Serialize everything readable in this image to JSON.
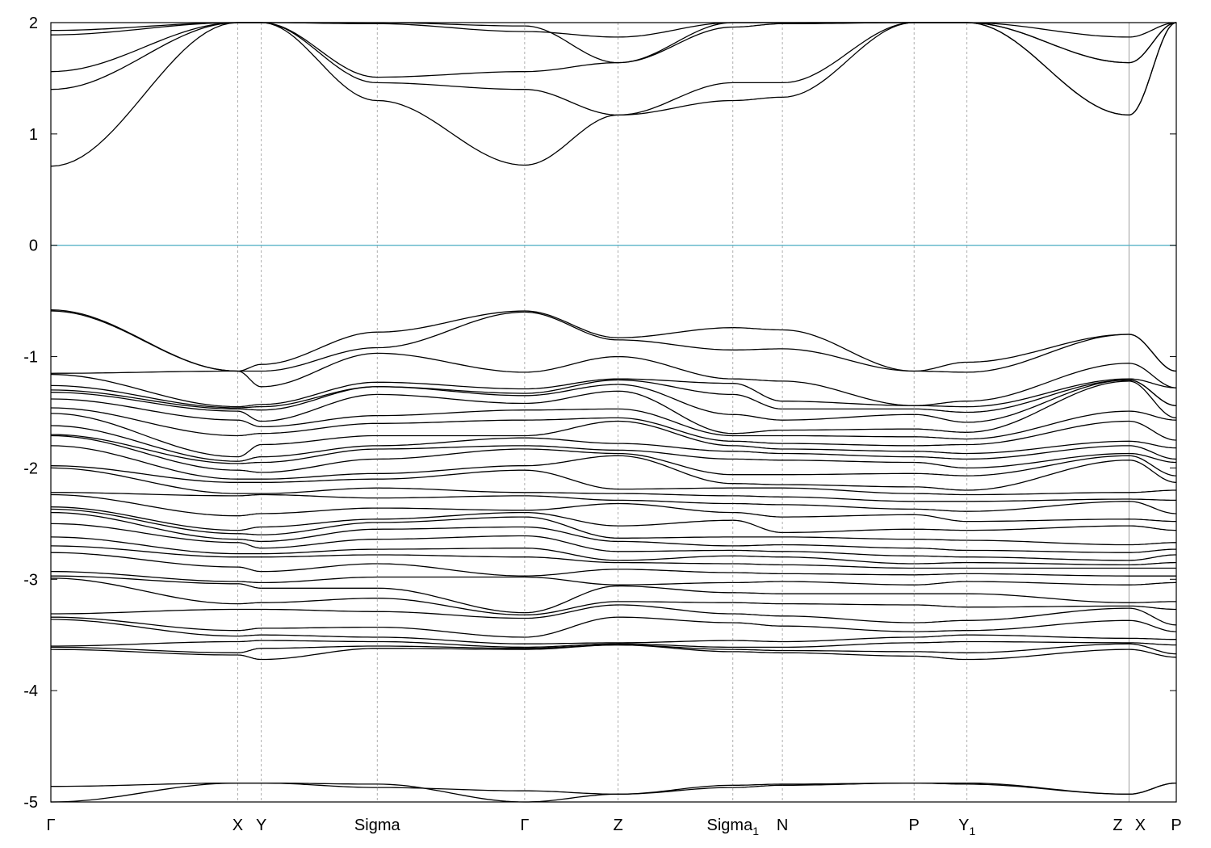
{
  "chart_data": {
    "type": "line",
    "title": "",
    "xlabel": "",
    "ylabel": "",
    "ylim": [
      -5,
      2
    ],
    "yticks": [
      "2",
      "1",
      "0",
      "-1",
      "-2",
      "-3",
      "-4",
      "-5"
    ],
    "fermi_level": {
      "value": 0,
      "color": "#5ab4c8"
    },
    "grid": "dashed vertical lines at high-symmetry points",
    "band_color": "#000000",
    "kpoints": [
      {
        "label": "Γ",
        "sub": "",
        "k": 0.0
      },
      {
        "label": "X",
        "sub": "",
        "k": 1.66
      },
      {
        "label": "Y",
        "sub": "",
        "k": 1.87
      },
      {
        "label": "Sigma",
        "sub": "",
        "k": 2.9
      },
      {
        "label": "Γ",
        "sub": "",
        "k": 4.21
      },
      {
        "label": "Z",
        "sub": "",
        "k": 5.04
      },
      {
        "label": "Sigma",
        "sub": "1",
        "k": 6.06
      },
      {
        "label": "N",
        "sub": "",
        "k": 6.5
      },
      {
        "label": "P",
        "sub": "",
        "k": 7.67
      },
      {
        "label": "Y",
        "sub": "1",
        "k": 8.14
      },
      {
        "label": "Z",
        "sub": "",
        "k": 9.58
      },
      {
        "label": "X",
        "sub": "",
        "k": 9.58
      },
      {
        "label": "P",
        "sub": "",
        "k": 10.0
      }
    ],
    "band_segments": [
      {
        "from": 0.0,
        "to": 1.66
      },
      {
        "from": 1.66,
        "to": 1.87
      },
      {
        "from": 1.87,
        "to": 2.9
      },
      {
        "from": 2.9,
        "to": 4.21
      },
      {
        "from": 4.21,
        "to": 5.04
      },
      {
        "from": 5.04,
        "to": 6.06
      },
      {
        "from": 6.06,
        "to": 6.5
      },
      {
        "from": 6.5,
        "to": 7.67
      },
      {
        "from": 7.67,
        "to": 8.14
      },
      {
        "from": 8.14,
        "to": 9.58
      },
      {
        "from": 9.58,
        "to": 10.0
      }
    ],
    "series": [
      {
        "values": [
          0.71,
          2.0,
          2.0,
          1.3,
          0.72,
          1.17,
          1.3,
          1.33,
          2.0,
          2.0,
          1.17,
          2.0
        ]
      },
      {
        "values": [
          1.4,
          2.0,
          2.0,
          1.46,
          1.4,
          1.17,
          1.46,
          1.46,
          2.0,
          2.0,
          1.17,
          2.0
        ]
      },
      {
        "values": [
          1.56,
          2.0,
          2.0,
          1.51,
          1.56,
          1.64,
          1.96,
          1.99,
          2.0,
          2.0,
          1.64,
          2.0
        ]
      },
      {
        "values": [
          1.89,
          2.0,
          2.0,
          1.99,
          1.92,
          1.87,
          2.0,
          2.0,
          2.0,
          2.0,
          1.87,
          2.0
        ]
      },
      {
        "values": [
          1.93,
          2.0,
          2.0,
          2.0,
          1.97,
          1.64,
          2.0,
          2.0,
          2.0,
          2.0,
          1.64,
          2.0
        ]
      },
      {
        "values": [
          -0.58,
          -1.13,
          -1.07,
          -0.78,
          -0.59,
          -0.83,
          -0.74,
          -0.76,
          -1.13,
          -1.05,
          -0.8,
          -1.13
        ]
      },
      {
        "values": [
          -0.59,
          -1.13,
          -1.13,
          -0.92,
          -0.6,
          -0.85,
          -0.94,
          -0.93,
          -1.13,
          -1.14,
          -0.8,
          -1.13
        ]
      },
      {
        "values": [
          -1.15,
          -1.13,
          -1.27,
          -0.97,
          -1.14,
          -1.0,
          -1.2,
          -1.22,
          -1.44,
          -1.4,
          -1.06,
          -1.28
        ]
      },
      {
        "values": [
          -1.16,
          -1.45,
          -1.43,
          -1.23,
          -1.29,
          -1.2,
          -1.24,
          -1.4,
          -1.44,
          -1.45,
          -1.2,
          -1.28
        ]
      },
      {
        "values": [
          -1.26,
          -1.46,
          -1.45,
          -1.27,
          -1.33,
          -1.21,
          -1.34,
          -1.47,
          -1.47,
          -1.5,
          -1.21,
          -1.44
        ]
      },
      {
        "values": [
          -1.3,
          -1.47,
          -1.48,
          -1.27,
          -1.35,
          -1.25,
          -1.52,
          -1.57,
          -1.52,
          -1.59,
          -1.21,
          -1.44
        ]
      },
      {
        "values": [
          -1.32,
          -1.49,
          -1.58,
          -1.34,
          -1.42,
          -1.31,
          -1.69,
          -1.66,
          -1.65,
          -1.68,
          -1.22,
          -1.55
        ]
      },
      {
        "values": [
          -1.38,
          -1.57,
          -1.63,
          -1.53,
          -1.48,
          -1.47,
          -1.71,
          -1.71,
          -1.72,
          -1.74,
          -1.49,
          -1.57
        ]
      },
      {
        "values": [
          -1.46,
          -1.71,
          -1.69,
          -1.6,
          -1.57,
          -1.55,
          -1.76,
          -1.78,
          -1.8,
          -1.79,
          -1.58,
          -1.75
        ]
      },
      {
        "values": [
          -1.51,
          -1.9,
          -1.79,
          -1.71,
          -1.71,
          -1.58,
          -1.8,
          -1.83,
          -1.85,
          -1.87,
          -1.76,
          -1.82
        ]
      },
      {
        "values": [
          -1.62,
          -1.94,
          -1.9,
          -1.8,
          -1.73,
          -1.78,
          -1.85,
          -1.87,
          -1.9,
          -1.92,
          -1.8,
          -1.92
        ]
      },
      {
        "values": [
          -1.7,
          -1.96,
          -1.95,
          -1.83,
          -1.8,
          -1.84,
          -1.92,
          -1.93,
          -1.95,
          -2.0,
          -1.87,
          -1.95
        ]
      },
      {
        "values": [
          -1.71,
          -2.02,
          -2.04,
          -1.92,
          -1.83,
          -1.87,
          -2.06,
          -2.06,
          -2.05,
          -2.07,
          -1.89,
          -2.07
        ]
      },
      {
        "values": [
          -1.8,
          -2.1,
          -2.1,
          -2.05,
          -1.98,
          -1.89,
          -2.14,
          -2.15,
          -2.17,
          -2.2,
          -1.93,
          -2.13
        ]
      },
      {
        "values": [
          -1.98,
          -2.13,
          -2.13,
          -2.1,
          -2.02,
          -2.19,
          -2.18,
          -2.18,
          -2.23,
          -2.24,
          -2.22,
          -2.2
        ]
      },
      {
        "values": [
          -2.0,
          -2.23,
          -2.23,
          -2.18,
          -2.22,
          -2.23,
          -2.25,
          -2.26,
          -2.3,
          -2.3,
          -2.28,
          -2.29
        ]
      },
      {
        "values": [
          -2.22,
          -2.25,
          -2.24,
          -2.27,
          -2.25,
          -2.29,
          -2.32,
          -2.33,
          -2.37,
          -2.39,
          -2.3,
          -2.41
        ]
      },
      {
        "values": [
          -2.24,
          -2.43,
          -2.41,
          -2.36,
          -2.38,
          -2.32,
          -2.4,
          -2.44,
          -2.42,
          -2.48,
          -2.46,
          -2.48
        ]
      },
      {
        "values": [
          -2.35,
          -2.56,
          -2.53,
          -2.46,
          -2.4,
          -2.52,
          -2.47,
          -2.58,
          -2.55,
          -2.56,
          -2.52,
          -2.56
        ]
      },
      {
        "values": [
          -2.37,
          -2.59,
          -2.6,
          -2.49,
          -2.44,
          -2.63,
          -2.62,
          -2.62,
          -2.64,
          -2.65,
          -2.69,
          -2.67
        ]
      },
      {
        "values": [
          -2.4,
          -2.64,
          -2.66,
          -2.55,
          -2.53,
          -2.66,
          -2.7,
          -2.69,
          -2.72,
          -2.74,
          -2.76,
          -2.73
        ]
      },
      {
        "values": [
          -2.5,
          -2.67,
          -2.72,
          -2.64,
          -2.61,
          -2.75,
          -2.74,
          -2.75,
          -2.79,
          -2.8,
          -2.83,
          -2.78
        ]
      },
      {
        "values": [
          -2.62,
          -2.77,
          -2.77,
          -2.73,
          -2.72,
          -2.83,
          -2.79,
          -2.8,
          -2.86,
          -2.85,
          -2.87,
          -2.85
        ]
      },
      {
        "values": [
          -2.7,
          -2.8,
          -2.8,
          -2.78,
          -2.8,
          -2.85,
          -2.86,
          -2.87,
          -2.9,
          -2.9,
          -2.9,
          -2.9
        ]
      },
      {
        "values": [
          -2.76,
          -2.89,
          -2.93,
          -2.86,
          -2.97,
          -2.91,
          -2.94,
          -2.95,
          -2.96,
          -2.95,
          -2.97,
          -2.97
        ]
      },
      {
        "values": [
          -2.93,
          -3.02,
          -3.03,
          -2.98,
          -2.98,
          -3.05,
          -3.03,
          -3.02,
          -3.05,
          -3.02,
          -3.05,
          -3.03
        ]
      },
      {
        "values": [
          -2.97,
          -3.04,
          -3.08,
          -3.08,
          -3.3,
          -3.06,
          -3.12,
          -3.13,
          -3.13,
          -3.13,
          -3.21,
          -3.2
        ]
      },
      {
        "values": [
          -2.99,
          -3.22,
          -3.21,
          -3.17,
          -3.32,
          -3.2,
          -3.21,
          -3.22,
          -3.23,
          -3.25,
          -3.24,
          -3.27
        ]
      },
      {
        "values": [
          -3.31,
          -3.27,
          -3.27,
          -3.29,
          -3.35,
          -3.23,
          -3.31,
          -3.33,
          -3.39,
          -3.37,
          -3.26,
          -3.41
        ]
      },
      {
        "values": [
          -3.34,
          -3.46,
          -3.44,
          -3.43,
          -3.52,
          -3.34,
          -3.39,
          -3.42,
          -3.47,
          -3.46,
          -3.37,
          -3.47
        ]
      },
      {
        "values": [
          -3.36,
          -3.51,
          -3.5,
          -3.52,
          -3.58,
          -3.57,
          -3.55,
          -3.56,
          -3.52,
          -3.5,
          -3.53,
          -3.54
        ]
      },
      {
        "values": [
          -3.6,
          -3.56,
          -3.55,
          -3.56,
          -3.61,
          -3.58,
          -3.61,
          -3.61,
          -3.57,
          -3.56,
          -3.57,
          -3.59
        ]
      },
      {
        "values": [
          -3.61,
          -3.66,
          -3.62,
          -3.6,
          -3.62,
          -3.59,
          -3.63,
          -3.64,
          -3.65,
          -3.66,
          -3.58,
          -3.67
        ]
      },
      {
        "values": [
          -3.63,
          -3.68,
          -3.72,
          -3.62,
          -3.63,
          -3.59,
          -3.65,
          -3.66,
          -3.69,
          -3.72,
          -3.63,
          -3.7
        ]
      },
      {
        "values": [
          -4.86,
          -4.83,
          -4.83,
          -4.87,
          -4.9,
          -4.93,
          -4.87,
          -4.85,
          -4.83,
          -4.84,
          -4.93,
          -4.83
        ]
      },
      {
        "values": [
          -5.0,
          -4.83,
          -4.83,
          -4.84,
          -5.0,
          -4.93,
          -4.85,
          -4.84,
          -4.83,
          -4.83,
          -4.93,
          -4.83
        ]
      }
    ]
  }
}
